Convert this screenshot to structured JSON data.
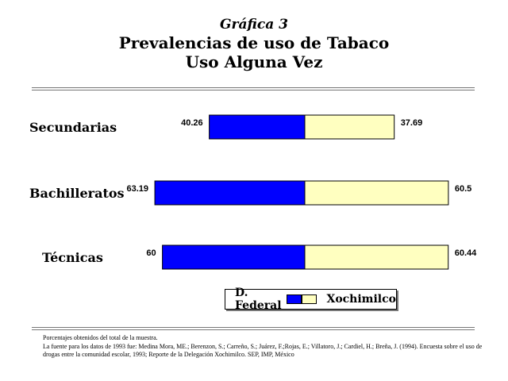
{
  "header": {
    "kicker": "Gráfica 3",
    "title_line1": "Prevalencias de uso de Tabaco",
    "title_line2": "Uso Alguna Vez"
  },
  "colors": {
    "d_federal": "#0000ff",
    "xochimilco": "#ffffc0"
  },
  "chart_data": {
    "type": "bar",
    "orientation": "horizontal",
    "layout": "diverging",
    "title": "Prevalencias de uso de Tabaco",
    "subtitle": "Uso Alguna Vez",
    "categories": [
      "Secundarias",
      "Bachilleratos",
      "Técnicas"
    ],
    "series": [
      {
        "name": "D. Federal",
        "values": [
          40.26,
          63.19,
          60
        ],
        "labels": [
          "40.26",
          "63.19",
          "60"
        ],
        "color": "#0000ff"
      },
      {
        "name": "Xochimilco",
        "values": [
          37.69,
          60.5,
          60.44
        ],
        "labels": [
          "37.69",
          "60.5",
          "60.44"
        ],
        "color": "#ffffc0"
      }
    ],
    "legend": "bottom-center",
    "grid": false
  },
  "legend": {
    "items": [
      "D. Federal",
      "Xochimilco"
    ]
  },
  "footnotes": {
    "line1": "Porcentajes obtenidos del total de la muestra.",
    "line2": "La fuente para los datos de 1993 fue: Medina Mora, ME.; Berenzon, S.; Carreño, S.; Juárez, F.;Rojas, E.; Villatoro, J.; Cardiel, H.; Breña, J. (1994). Encuesta sobre el uso de drogas entre la comunidad escolar, 1993; Reporte de la Delegación Xochimilco. SEP, IMP, México"
  }
}
